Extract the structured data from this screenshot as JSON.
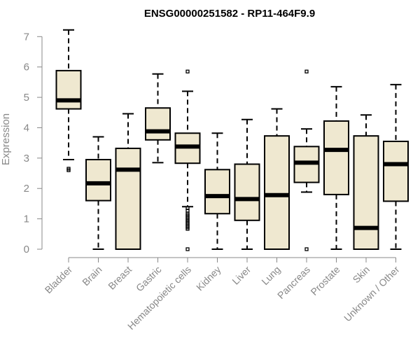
{
  "chart_data": {
    "type": "boxplot",
    "title": "ENSG00000251582 - RP11-464F9.9",
    "xlabel": "",
    "ylabel": "Expression",
    "ylim": [
      0,
      7
    ],
    "yticks": [
      0,
      1,
      2,
      3,
      4,
      5,
      6,
      7
    ],
    "box_color": "#efe8d0",
    "categories": [
      "Bladder",
      "Brain",
      "Breast",
      "Gastric",
      "Hematopoietic cells",
      "Kidney",
      "Liver",
      "Lung",
      "Pancreas",
      "Prostate",
      "Skin",
      "Unknown / Other"
    ],
    "boxes": [
      {
        "name": "Bladder",
        "whisker_low": 2.95,
        "q1": 4.62,
        "median": 4.9,
        "q3": 5.88,
        "whisker_high": 7.22,
        "outliers": [
          2.6,
          2.65
        ]
      },
      {
        "name": "Brain",
        "whisker_low": 0.0,
        "q1": 1.6,
        "median": 2.17,
        "q3": 2.95,
        "whisker_high": 3.7,
        "outliers": []
      },
      {
        "name": "Breast",
        "whisker_low": 0.0,
        "q1": 0.0,
        "median": 2.62,
        "q3": 3.32,
        "whisker_high": 4.46,
        "outliers": []
      },
      {
        "name": "Gastric",
        "whisker_low": 2.85,
        "q1": 3.6,
        "median": 3.88,
        "q3": 4.65,
        "whisker_high": 5.77,
        "outliers": []
      },
      {
        "name": "Hematopoietic cells",
        "whisker_low": 1.4,
        "q1": 2.83,
        "median": 3.38,
        "q3": 3.82,
        "whisker_high": 5.2,
        "outliers": [
          0.0,
          0.67,
          0.72,
          0.77,
          0.82,
          0.87,
          0.92,
          0.97,
          1.02,
          1.07,
          1.12,
          1.17,
          1.27,
          1.35,
          5.85
        ]
      },
      {
        "name": "Kidney",
        "whisker_low": 0.0,
        "q1": 1.17,
        "median": 1.75,
        "q3": 2.62,
        "whisker_high": 3.82,
        "outliers": []
      },
      {
        "name": "Liver",
        "whisker_low": 0.0,
        "q1": 0.95,
        "median": 1.65,
        "q3": 2.8,
        "whisker_high": 4.27,
        "outliers": []
      },
      {
        "name": "Lung",
        "whisker_low": 0.0,
        "q1": 0.0,
        "median": 1.78,
        "q3": 3.73,
        "whisker_high": 4.62,
        "outliers": []
      },
      {
        "name": "Pancreas",
        "whisker_low": 1.88,
        "q1": 2.2,
        "median": 2.85,
        "q3": 3.38,
        "whisker_high": 3.96,
        "outliers": [
          0.0,
          5.85
        ]
      },
      {
        "name": "Prostate",
        "whisker_low": 0.0,
        "q1": 1.8,
        "median": 3.27,
        "q3": 4.22,
        "whisker_high": 5.35,
        "outliers": []
      },
      {
        "name": "Skin",
        "whisker_low": 0.0,
        "q1": 0.0,
        "median": 0.7,
        "q3": 3.73,
        "whisker_high": 4.42,
        "outliers": []
      },
      {
        "name": "Unknown / Other",
        "whisker_low": 0.0,
        "q1": 1.58,
        "median": 2.8,
        "q3": 3.55,
        "whisker_high": 5.42,
        "outliers": []
      }
    ]
  }
}
